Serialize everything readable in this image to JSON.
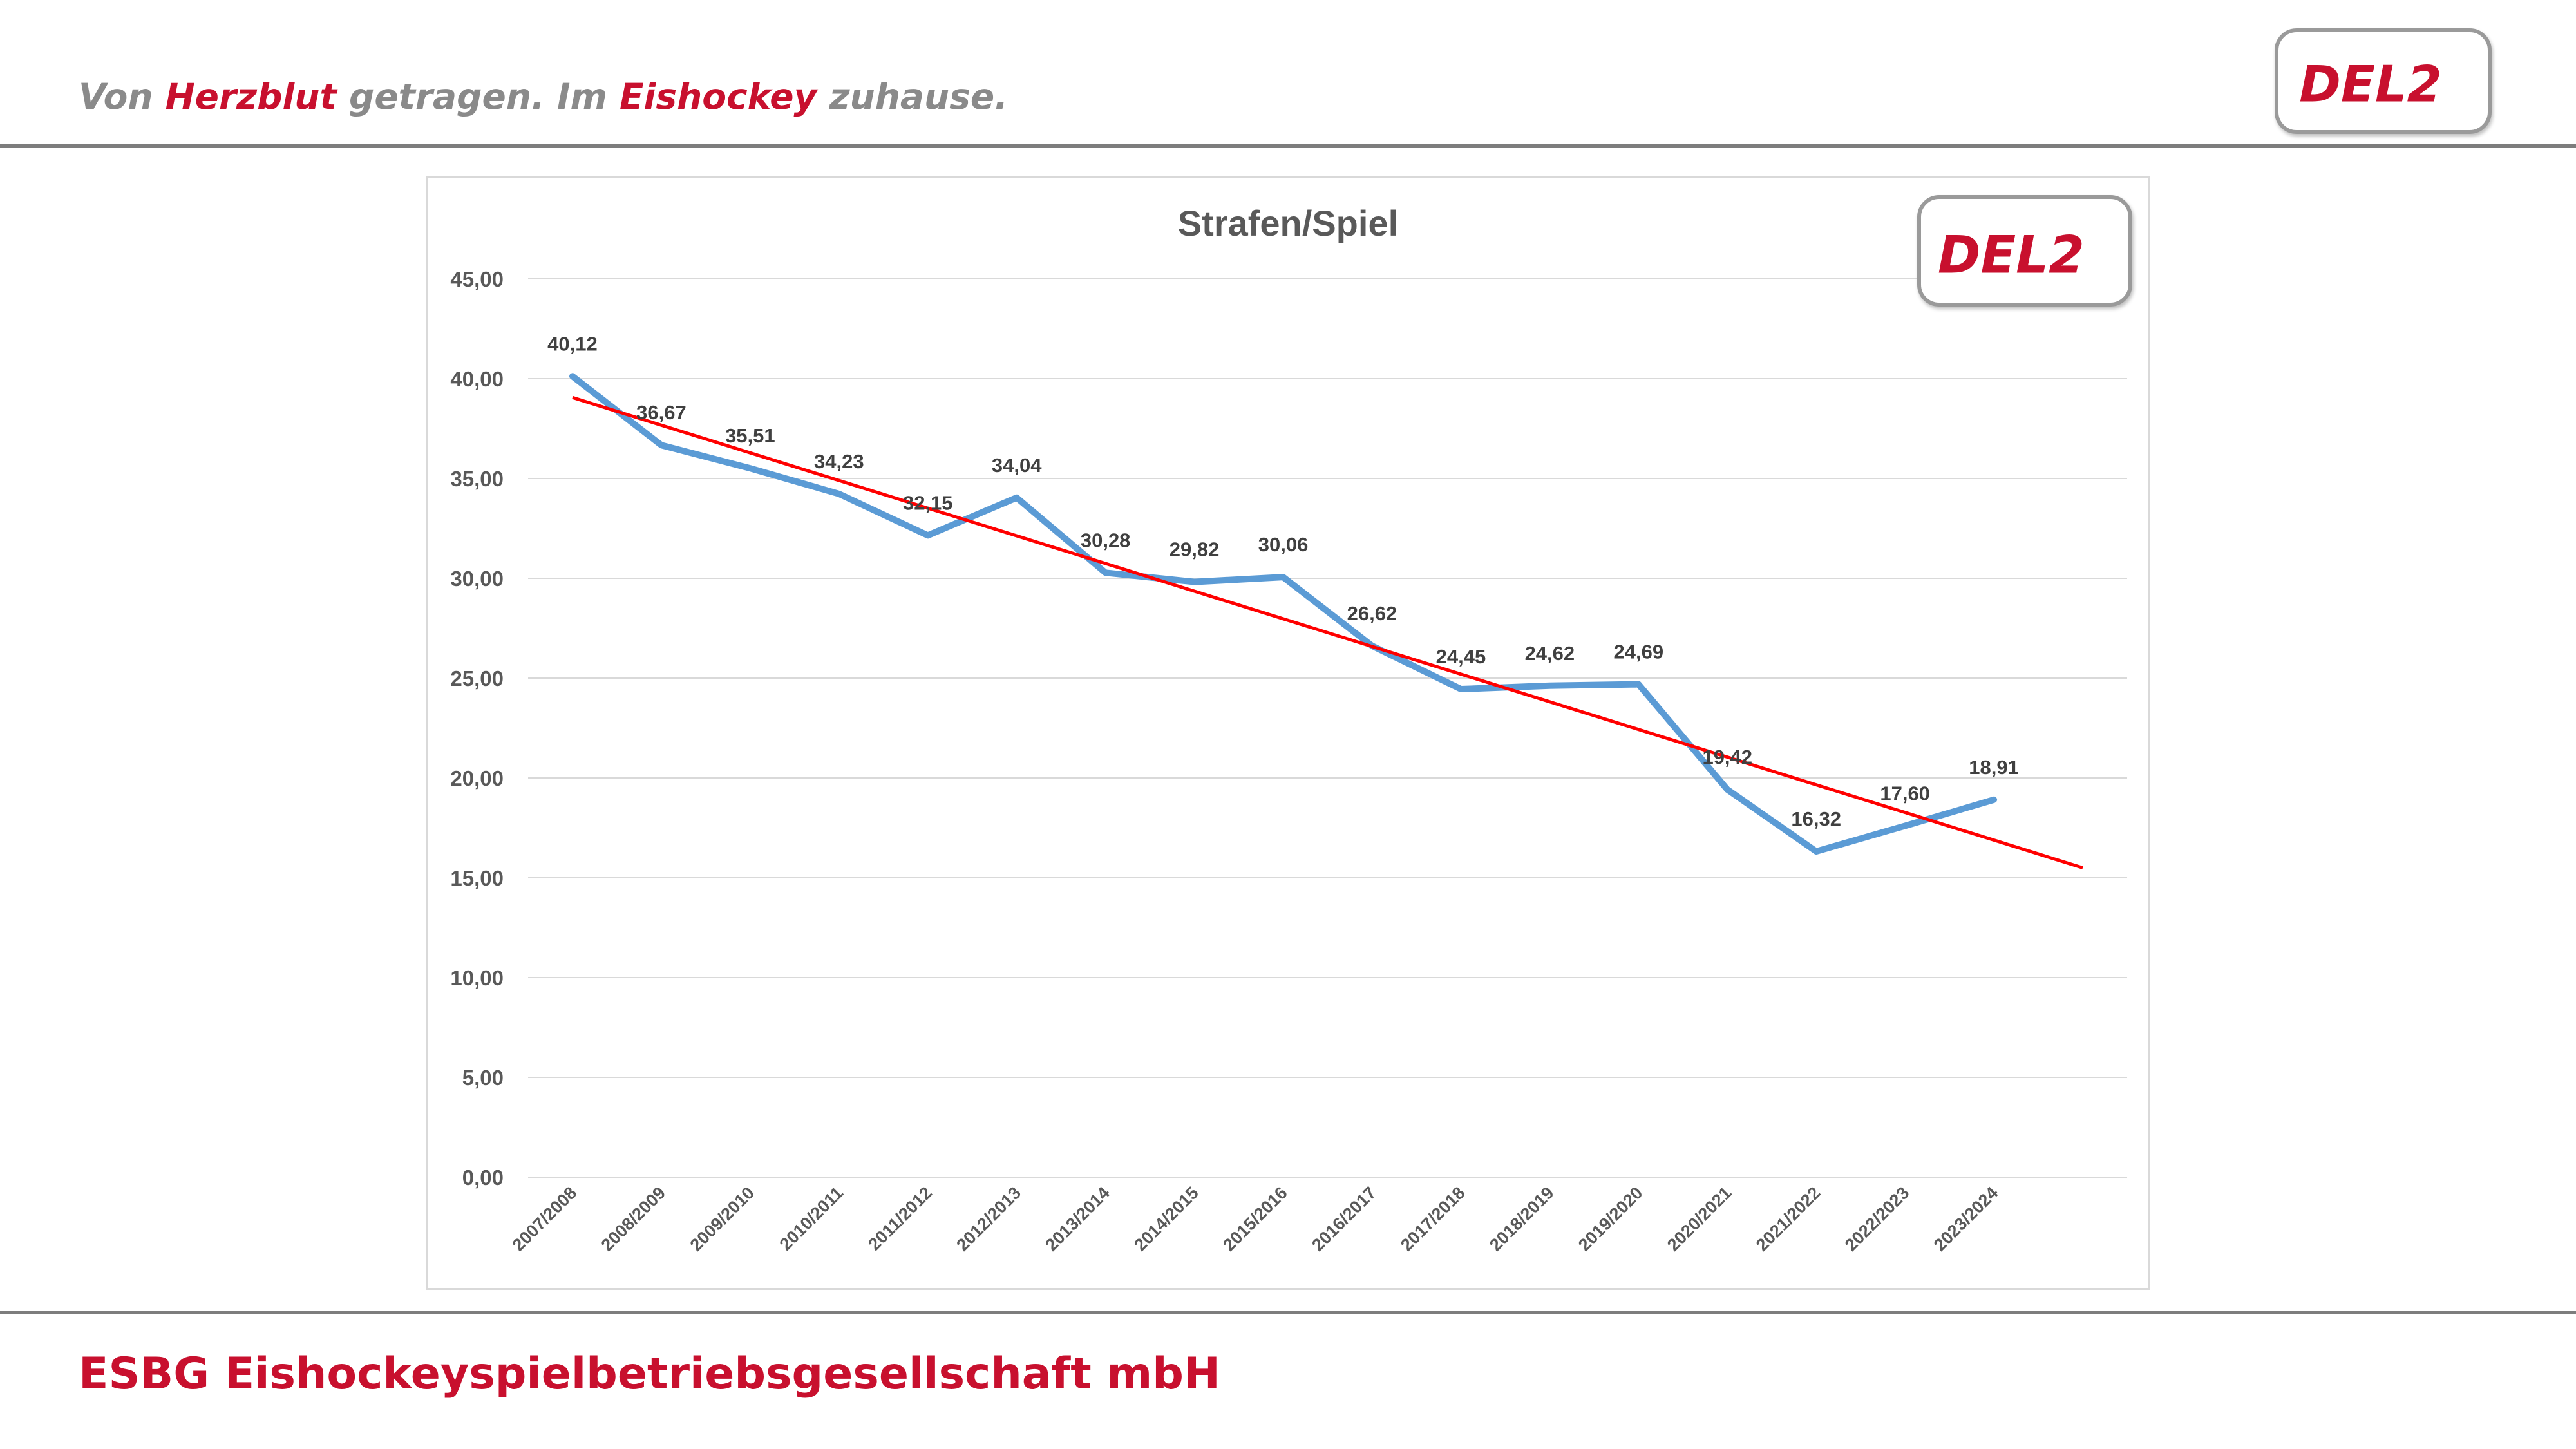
{
  "header": {
    "slogan": {
      "part1": "Von ",
      "highlight1": "Herzblut",
      "part2": " getragen. Im ",
      "highlight2": "Eishockey",
      "part3": " zuhause."
    },
    "logo_text": "DEL2",
    "logo_icon": "del2-logo-icon"
  },
  "footer": {
    "text": "ESBG Eishockeyspielbetriebsgesellschaft mbH"
  },
  "colors": {
    "brand_red": "#c8102e",
    "slogan_gray": "#8a8a8a",
    "series_line": "#5b9bd5",
    "trend_line": "#ff0000",
    "gridline": "#d9d9d9",
    "axis_text": "#595959"
  },
  "chart_data": {
    "type": "line",
    "title": "Strafen/Spiel",
    "xlabel": "",
    "ylabel": "",
    "ylim": [
      0,
      45
    ],
    "yticks": [
      0,
      5,
      10,
      15,
      20,
      25,
      30,
      35,
      40,
      45
    ],
    "ytick_labels": [
      "0,00",
      "5,00",
      "10,00",
      "15,00",
      "20,00",
      "25,00",
      "30,00",
      "35,00",
      "40,00",
      "45,00"
    ],
    "grid": true,
    "legend": "none",
    "categories": [
      "2007/2008",
      "2008/2009",
      "2009/2010",
      "2010/2011",
      "2011/2012",
      "2012/2013",
      "2013/2014",
      "2014/2015",
      "2015/2016",
      "2016/2017",
      "2017/2018",
      "2018/2019",
      "2019/2020",
      "2020/2021",
      "2021/2022",
      "2022/2023",
      "2023/2024"
    ],
    "series": [
      {
        "values": [
          40.12,
          36.67,
          35.51,
          34.23,
          32.15,
          34.04,
          30.28,
          29.82,
          30.06,
          26.62,
          24.45,
          24.62,
          24.69,
          19.42,
          16.32,
          17.6,
          18.91
        ],
        "data_labels": [
          "40,12",
          "36,67",
          "35,51",
          "34,23",
          "32,15",
          "34,04",
          "30,28",
          "29,82",
          "30,06",
          "26,62",
          "24,45",
          "24,62",
          "24,69",
          "19,42",
          "16,32",
          "17,60",
          "18,91"
        ]
      }
    ],
    "trendline": {
      "type": "linear",
      "forecast_forward_periods": 1
    }
  }
}
